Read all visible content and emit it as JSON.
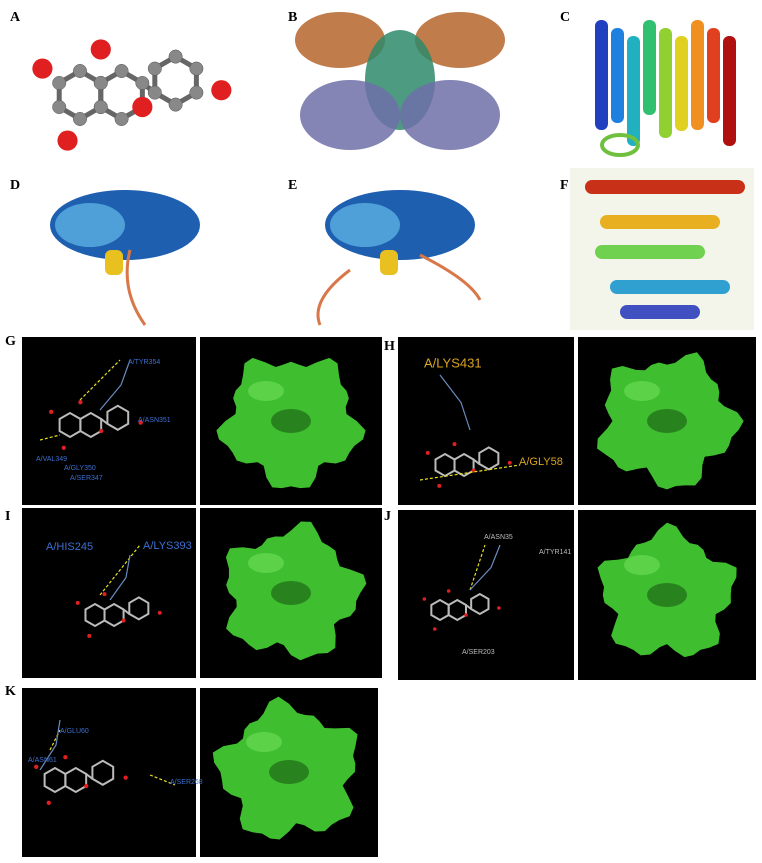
{
  "panels": [
    {
      "letter": "A"
    },
    {
      "letter": "B"
    },
    {
      "letter": "C"
    },
    {
      "letter": "D"
    },
    {
      "letter": "E"
    },
    {
      "letter": "F"
    },
    {
      "letter": "G",
      "labels": [
        "A/TYR354",
        "A/ASN351",
        "A/VAL349",
        "A/GLY350",
        "A/SER347"
      ]
    },
    {
      "letter": "H",
      "labels": [
        "A/LYS431",
        "A/GLY58"
      ]
    },
    {
      "letter": "I",
      "labels": [
        "A/HIS245",
        "A/LYS393"
      ]
    },
    {
      "letter": "J",
      "labels": [
        "A/ASN35",
        "A/TYR141",
        "A/SER203"
      ]
    },
    {
      "letter": "K",
      "labels": [
        "A/GLU60",
        "A/ASN61",
        "A/SER268"
      ]
    }
  ]
}
